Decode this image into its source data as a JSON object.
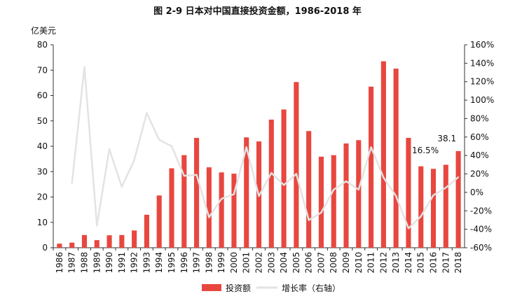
{
  "chart_data": {
    "type": "bar",
    "title": "图 2-9 日本对中国直接投资金额，1986-2018 年",
    "left_axis_label": "亿美元",
    "categories": [
      "1986",
      "1987",
      "1988",
      "1989",
      "1990",
      "1991",
      "1992",
      "1993",
      "1994",
      "1995",
      "1996",
      "1997",
      "1998",
      "1999",
      "2000",
      "2001",
      "2002",
      "2003",
      "2004",
      "2005",
      "2006",
      "2007",
      "2008",
      "2009",
      "2010",
      "2011",
      "2012",
      "2013",
      "2014",
      "2015",
      "2016",
      "2017",
      "2018"
    ],
    "series": [
      {
        "name": "投资额",
        "type": "bar",
        "axis": "left",
        "color": "#e8473f",
        "values": [
          1.6,
          2.0,
          5.0,
          3.0,
          4.9,
          5.0,
          6.8,
          13.0,
          20.6,
          31.3,
          36.5,
          43.3,
          31.7,
          29.7,
          29.2,
          43.5,
          41.9,
          50.5,
          54.5,
          65.3,
          46.0,
          35.9,
          36.5,
          41.1,
          42.4,
          63.5,
          73.5,
          70.6,
          43.3,
          32.1,
          31.1,
          32.7,
          38.1
        ]
      },
      {
        "name": "增长率（右轴）",
        "type": "line",
        "axis": "right",
        "color": "#e3e3e3",
        "values": [
          null,
          10,
          136,
          -36,
          47,
          6,
          35,
          86,
          57,
          50,
          18,
          19,
          -27,
          -7,
          -2,
          49,
          -4,
          21,
          8,
          20,
          -30,
          -22,
          3,
          12,
          3,
          49,
          16,
          -4,
          -39,
          -26,
          -3,
          5,
          16.5
        ]
      }
    ],
    "y_left": {
      "min": 0,
      "max": 80,
      "ticks": [
        0,
        10,
        20,
        30,
        40,
        50,
        60,
        70,
        80
      ]
    },
    "y_right": {
      "min": -60,
      "max": 160,
      "ticks": [
        -60,
        -40,
        -20,
        0,
        20,
        40,
        60,
        80,
        100,
        120,
        140,
        160
      ],
      "tick_suffix": "%"
    },
    "annotations": [
      {
        "text": "38.1",
        "category": "2018",
        "series": "投资额"
      },
      {
        "text": "16.5%",
        "category": "2018",
        "series": "增长率（右轴）"
      }
    ],
    "legend_position": "bottom-center",
    "grid": false
  }
}
